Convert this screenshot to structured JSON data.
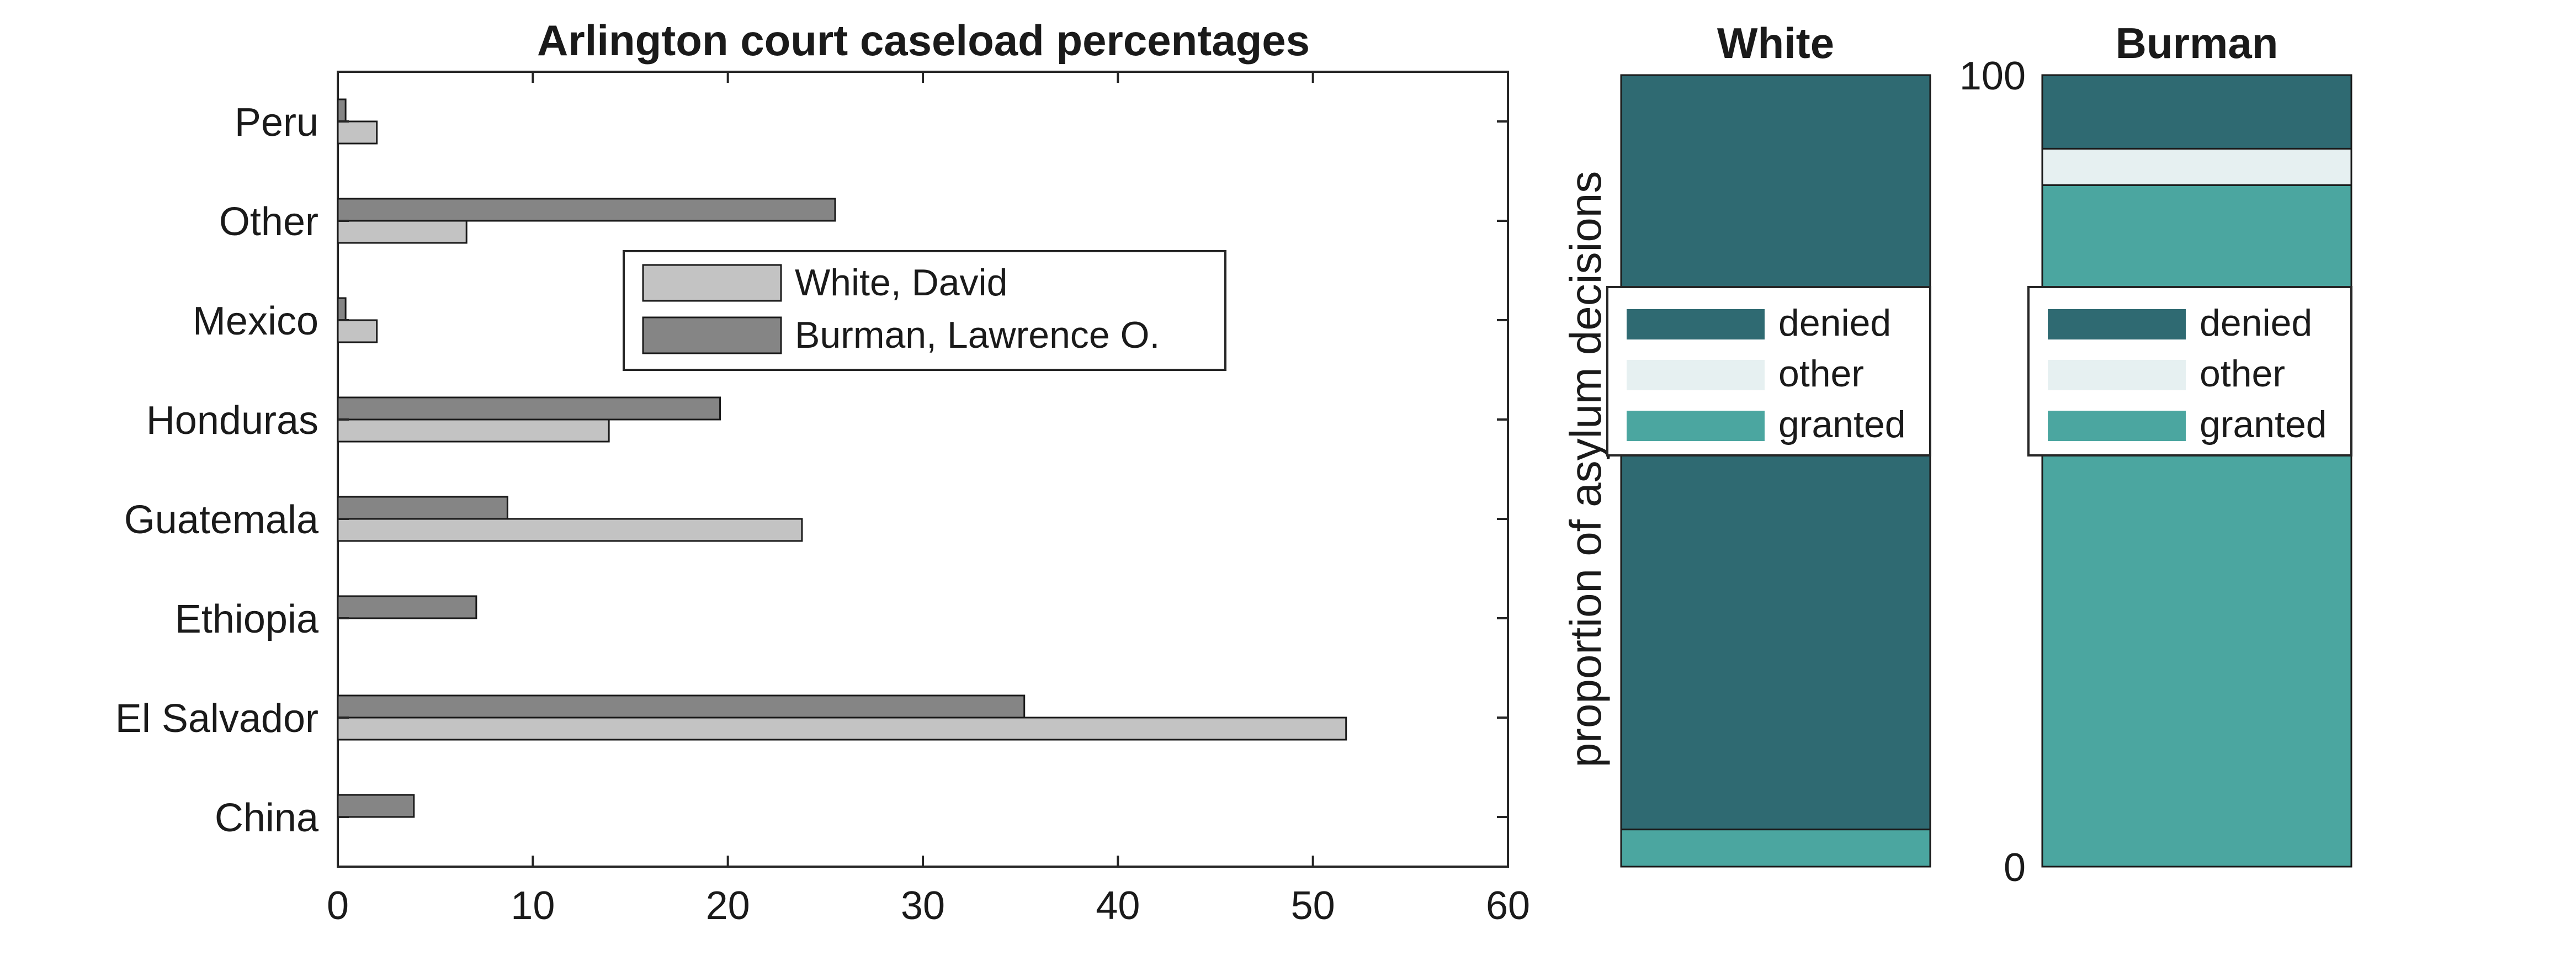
{
  "colors": {
    "white_bar": "#c3c3c3",
    "burman_bar": "#858585",
    "denied": "#2f6a72",
    "other": "#e6f0f1",
    "granted": "#4ba6a0"
  },
  "chart_data": [
    {
      "type": "bar",
      "orientation": "horizontal",
      "title": "Arlington court caseload percentages",
      "xlabel": "",
      "ylabel": "",
      "xlim": [
        0,
        60
      ],
      "xticks": [
        "0",
        "10",
        "20",
        "30",
        "40",
        "50",
        "60"
      ],
      "categories": [
        "Peru",
        "Other",
        "Mexico",
        "Honduras",
        "Guatemala",
        "Ethiopia",
        "El Salvador",
        "China"
      ],
      "series": [
        {
          "name": "White, David",
          "values": [
            2.0,
            6.6,
            2.0,
            13.9,
            23.8,
            0,
            51.7,
            0
          ]
        },
        {
          "name": "Burman, Lawrence O.",
          "values": [
            0.4,
            25.5,
            0.4,
            19.6,
            8.7,
            7.1,
            35.2,
            3.9
          ]
        }
      ],
      "legend_position": "upper-middle",
      "grid": false
    },
    {
      "type": "bar",
      "stacked": true,
      "ylabel": "proportion of asylum decisions",
      "ylim": [
        0,
        100
      ],
      "yticks": [
        "0",
        "100"
      ],
      "segments": [
        "denied",
        "other",
        "granted"
      ],
      "panels": [
        {
          "title": "White",
          "values": {
            "denied": 95.3,
            "other": 0,
            "granted": 4.7
          }
        },
        {
          "title": "Burman",
          "values": {
            "denied": 9.3,
            "other": 4.6,
            "granted": 86.1
          }
        }
      ],
      "legend_position": "center",
      "grid": false
    }
  ]
}
